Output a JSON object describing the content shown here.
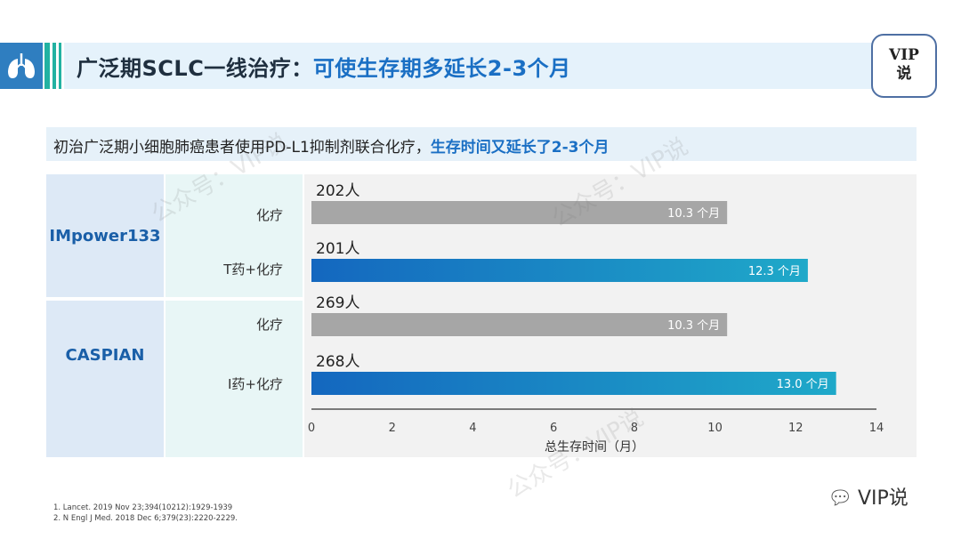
{
  "header": {
    "title_main": "广泛期SCLC一线治疗：",
    "title_highlight": "可使生存期多延长2-3个月"
  },
  "badge": {
    "line1": "VIP",
    "line2": "说"
  },
  "subtitle": {
    "text_main": "初治广泛期小细胞肺癌患者使用PD-L1抑制剂联合化疗，",
    "text_highlight": "生存时间又延长了2-3个月"
  },
  "studies": [
    {
      "name": "IMpower133"
    },
    {
      "name": "CASPIAN"
    }
  ],
  "chart_data": {
    "type": "bar",
    "orientation": "horizontal",
    "title": "",
    "xlabel": "总生存时间（月）",
    "ylabel": "",
    "xlim": [
      0,
      14
    ],
    "xticks": [
      0,
      2,
      4,
      6,
      8,
      10,
      12,
      14
    ],
    "grid": false,
    "bars": [
      {
        "study": "IMpower133",
        "arm": "化疗",
        "n_label": "202人",
        "value": 10.3,
        "value_label": "10.3 个月",
        "color": "#a6a6a6"
      },
      {
        "study": "IMpower133",
        "arm": "T药+化疗",
        "n_label": "201人",
        "value": 12.3,
        "value_label": "12.3 个月",
        "color": "#1467bf",
        "color_end": "#1fa9c9"
      },
      {
        "study": "CASPIAN",
        "arm": "化疗",
        "n_label": "269人",
        "value": 10.3,
        "value_label": "10.3 个月",
        "color": "#a6a6a6"
      },
      {
        "study": "CASPIAN",
        "arm": "I药+化疗",
        "n_label": "268人",
        "value": 13.0,
        "value_label": "13.0 个月",
        "color": "#1467bf",
        "color_end": "#1fa9c9"
      }
    ]
  },
  "footnotes": [
    "1.    Lancet. 2019 Nov 23;394(10212):1929-1939",
    "2.    N Engl J Med. 2018 Dec 6;379(23):2220-2229."
  ],
  "brand": {
    "text": "VIP说",
    "icon": "wechat-bubble-icon"
  },
  "watermark": {
    "text": "公众号：VIP说"
  },
  "colors": {
    "accent_blue": "#1a6fc4",
    "teal": "#22b2a2",
    "header_band": "#e5f2fb"
  }
}
